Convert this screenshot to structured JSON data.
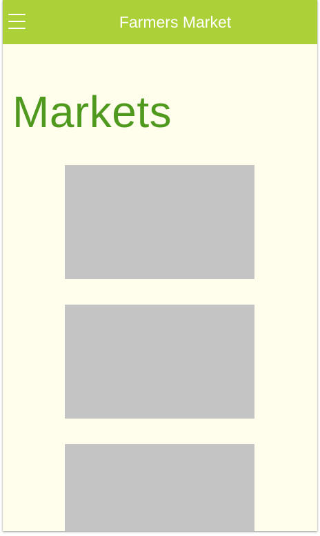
{
  "app_bar": {
    "title": "Farmers Market",
    "menu_icon": "hamburger-menu-icon"
  },
  "page": {
    "title": "Markets"
  },
  "markets": [
    {
      "placeholder": "image"
    },
    {
      "placeholder": "image"
    },
    {
      "placeholder": "image"
    }
  ],
  "colors": {
    "app_bar": "#acd037",
    "background": "#fffdeb",
    "title": "#4f9a1e",
    "card_placeholder": "#c4c4c4"
  }
}
